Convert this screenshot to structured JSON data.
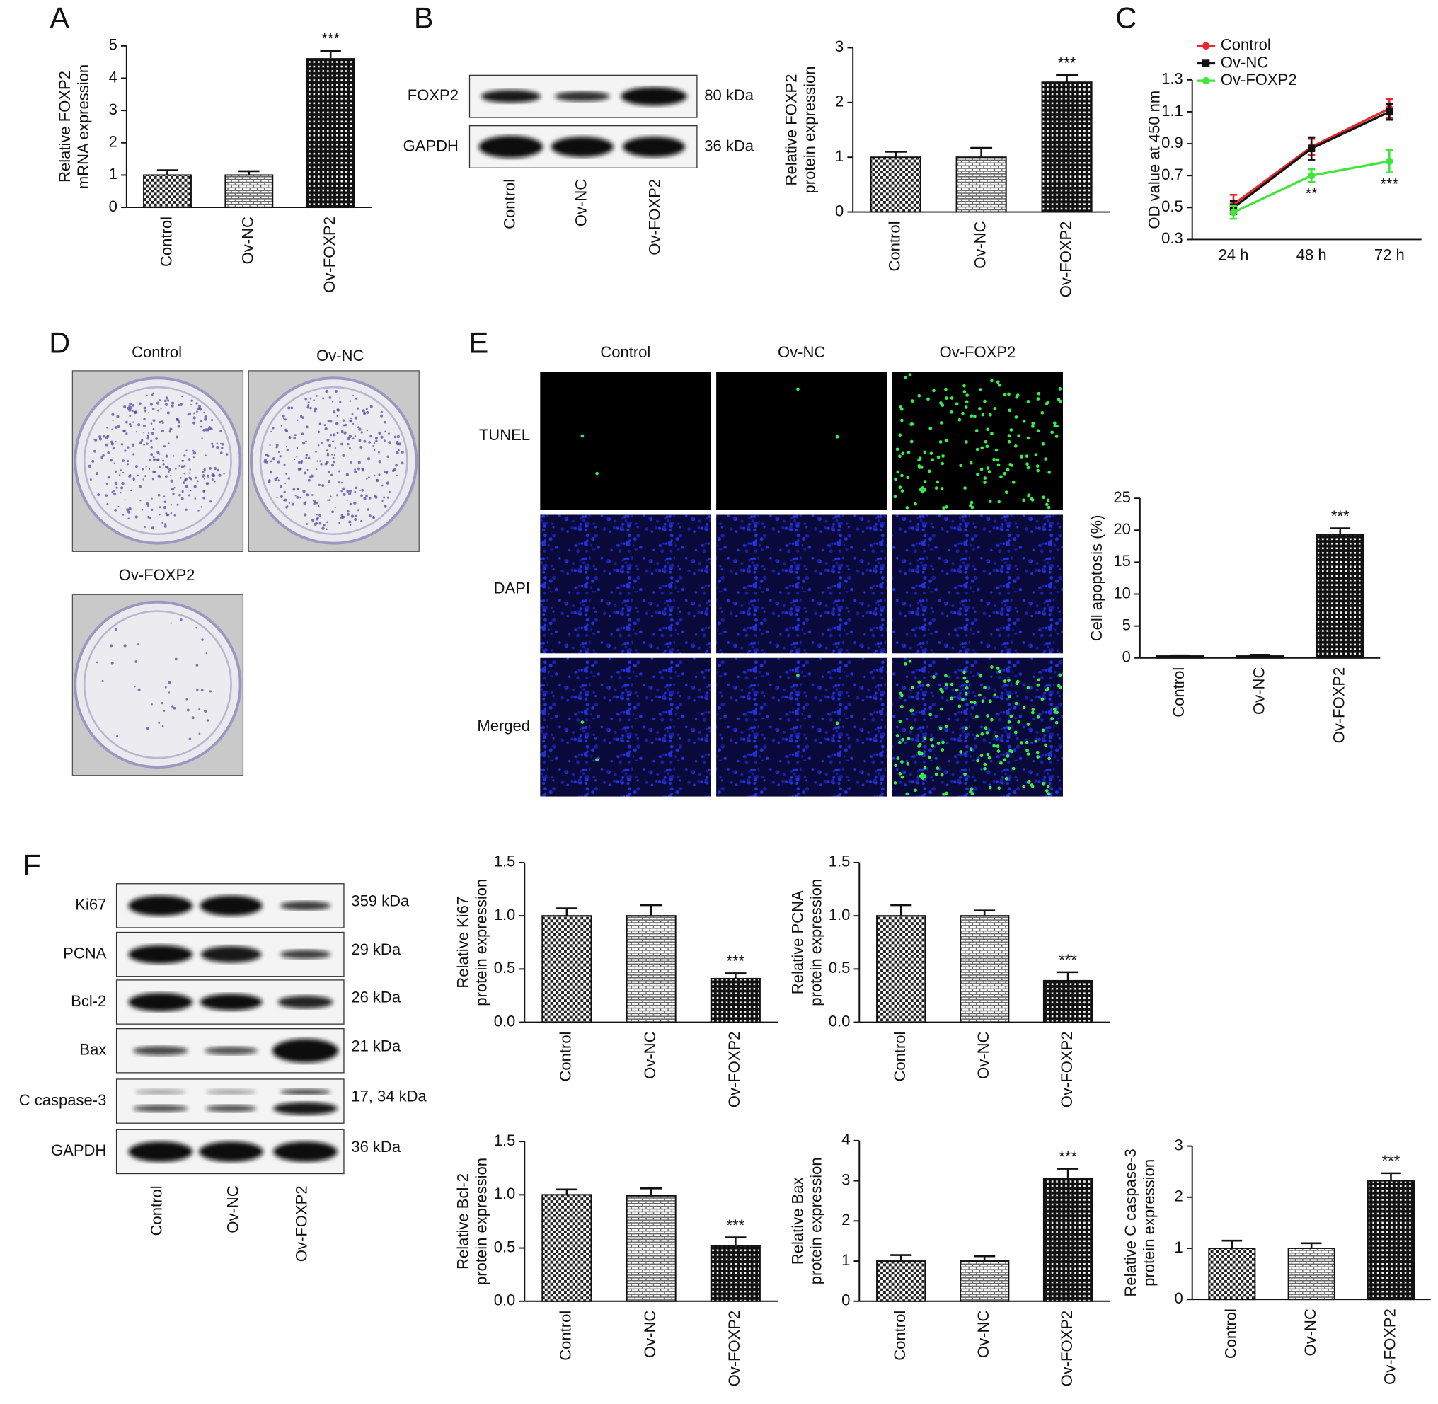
{
  "panels": [
    "A",
    "B",
    "C",
    "D",
    "E",
    "F"
  ],
  "blot_b": {
    "rows": [
      "FOXP2",
      "GAPDH"
    ],
    "sizes": [
      "80 kDa",
      "36 kDa"
    ],
    "lanes": [
      "Control",
      "Ov-NC",
      "Ov-FOXP2"
    ]
  },
  "colony_d": {
    "labels": [
      "Control",
      "Ov-NC",
      "Ov-FOXP2"
    ]
  },
  "images_e": {
    "columns": [
      "Control",
      "Ov-NC",
      "Ov-FOXP2"
    ],
    "rows": [
      "TUNEL",
      "DAPI",
      "Merged"
    ]
  },
  "blot_f": {
    "rows": [
      "Ki67",
      "PCNA",
      "Bcl-2",
      "Bax",
      "C caspase-3",
      "GAPDH"
    ],
    "sizes": [
      "359 kDa",
      "29 kDa",
      "26 kDa",
      "21 kDa",
      "17, 34 kDa",
      "36 kDa"
    ],
    "lanes": [
      "Control",
      "Ov-NC",
      "Ov-FOXP2"
    ]
  },
  "chart_data": [
    {
      "type": "bar",
      "y_label": [
        "Relative FOXP2",
        "mRNA expression"
      ],
      "categories": [
        "Control",
        "Ov-NC",
        "Ov-FOXP2"
      ],
      "values": [
        1,
        1,
        4.6
      ],
      "errors": [
        0.15,
        0.12,
        0.25
      ],
      "significance": [
        null,
        null,
        "***"
      ],
      "ylim": [
        0,
        5
      ],
      "yticks": [
        0,
        1,
        2,
        3,
        4,
        5
      ]
    },
    {
      "type": "bar",
      "y_label": [
        "Relative FOXP2",
        "protein expression"
      ],
      "categories": [
        "Control",
        "Ov-NC",
        "Ov-FOXP2"
      ],
      "values": [
        1,
        1,
        2.37
      ],
      "errors": [
        0.1,
        0.17,
        0.13
      ],
      "significance": [
        null,
        null,
        "***"
      ],
      "ylim": [
        0,
        3
      ],
      "yticks": [
        0,
        1,
        2,
        3
      ]
    },
    {
      "type": "line",
      "y_label": [
        "OD value at 450 nm"
      ],
      "categories": [
        "24 h",
        "48 h",
        "72 h"
      ],
      "series": [
        {
          "name": "Control",
          "color": "#e8262b",
          "values": [
            0.52,
            0.88,
            1.12
          ],
          "errors": [
            0.06,
            0.05,
            0.06
          ]
        },
        {
          "name": "Ov-NC",
          "color": "#111111",
          "values": [
            0.5,
            0.87,
            1.1
          ],
          "errors": [
            0.04,
            0.07,
            0.05
          ]
        },
        {
          "name": "Ov-FOXP2",
          "color": "#3ee63a",
          "values": [
            0.47,
            0.7,
            0.79
          ],
          "errors": [
            0.04,
            0.04,
            0.07
          ]
        }
      ],
      "significance": [
        null,
        "**",
        "***"
      ],
      "ylim": [
        0.3,
        1.3
      ],
      "yticks": [
        0.3,
        0.5,
        0.7,
        0.9,
        1.1,
        1.3
      ],
      "legend": "upper left"
    },
    {
      "type": "bar",
      "y_label": [
        "Cell apoptosis (%)"
      ],
      "categories": [
        "Control",
        "Ov-NC",
        "Ov-FOXP2"
      ],
      "values": [
        0.3,
        0.3,
        19.3
      ],
      "errors": [
        0.1,
        0.2,
        1.0
      ],
      "significance": [
        null,
        null,
        "***"
      ],
      "ylim": [
        0,
        25
      ],
      "yticks": [
        0,
        5,
        10,
        15,
        20,
        25
      ]
    },
    {
      "type": "bar",
      "y_label": [
        "Relative Ki67",
        "protein expression"
      ],
      "categories": [
        "Control",
        "Ov-NC",
        "Ov-FOXP2"
      ],
      "values": [
        1,
        1,
        0.41
      ],
      "errors": [
        0.07,
        0.1,
        0.05
      ],
      "significance": [
        null,
        null,
        "***"
      ],
      "ylim": [
        0,
        1.5
      ],
      "yticks": [
        {
          "value": 0,
          "label": "0.0"
        },
        0.5,
        {
          "value": 1,
          "label": "1.0"
        },
        1.5
      ]
    },
    {
      "type": "bar",
      "y_label": [
        "Relative PCNA",
        "protein expression"
      ],
      "categories": [
        "Control",
        "Ov-NC",
        "Ov-FOXP2"
      ],
      "values": [
        1,
        1,
        0.39
      ],
      "errors": [
        0.1,
        0.05,
        0.08
      ],
      "significance": [
        null,
        null,
        "***"
      ],
      "ylim": [
        0,
        1.5
      ],
      "yticks": [
        {
          "value": 0,
          "label": "0.0"
        },
        0.5,
        {
          "value": 1,
          "label": "1.0"
        },
        1.5
      ]
    },
    {
      "type": "bar",
      "y_label": [
        "Relative Bcl-2",
        "protein expression"
      ],
      "categories": [
        "Control",
        "Ov-NC",
        "Ov-FOXP2"
      ],
      "values": [
        1,
        0.99,
        0.52
      ],
      "errors": [
        0.05,
        0.07,
        0.08
      ],
      "significance": [
        null,
        null,
        "***"
      ],
      "ylim": [
        0,
        1.5
      ],
      "yticks": [
        {
          "value": 0,
          "label": "0.0"
        },
        0.5,
        {
          "value": 1,
          "label": "1.0"
        },
        1.5
      ]
    },
    {
      "type": "bar",
      "y_label": [
        "Relative Bax",
        "protein expression"
      ],
      "categories": [
        "Control",
        "Ov-NC",
        "Ov-FOXP2"
      ],
      "values": [
        1,
        1,
        3.05
      ],
      "errors": [
        0.15,
        0.12,
        0.25
      ],
      "significance": [
        null,
        null,
        "***"
      ],
      "ylim": [
        0,
        4
      ],
      "yticks": [
        0,
        1,
        2,
        3,
        4
      ]
    },
    {
      "type": "bar",
      "y_label": [
        "Relative C caspase-3",
        "protein expression"
      ],
      "categories": [
        "Control",
        "Ov-NC",
        "Ov-FOXP2"
      ],
      "values": [
        1,
        1,
        2.32
      ],
      "errors": [
        0.15,
        0.1,
        0.15
      ],
      "significance": [
        null,
        null,
        "***"
      ],
      "ylim": [
        0,
        3
      ],
      "yticks": [
        0,
        1,
        2,
        3
      ]
    }
  ]
}
